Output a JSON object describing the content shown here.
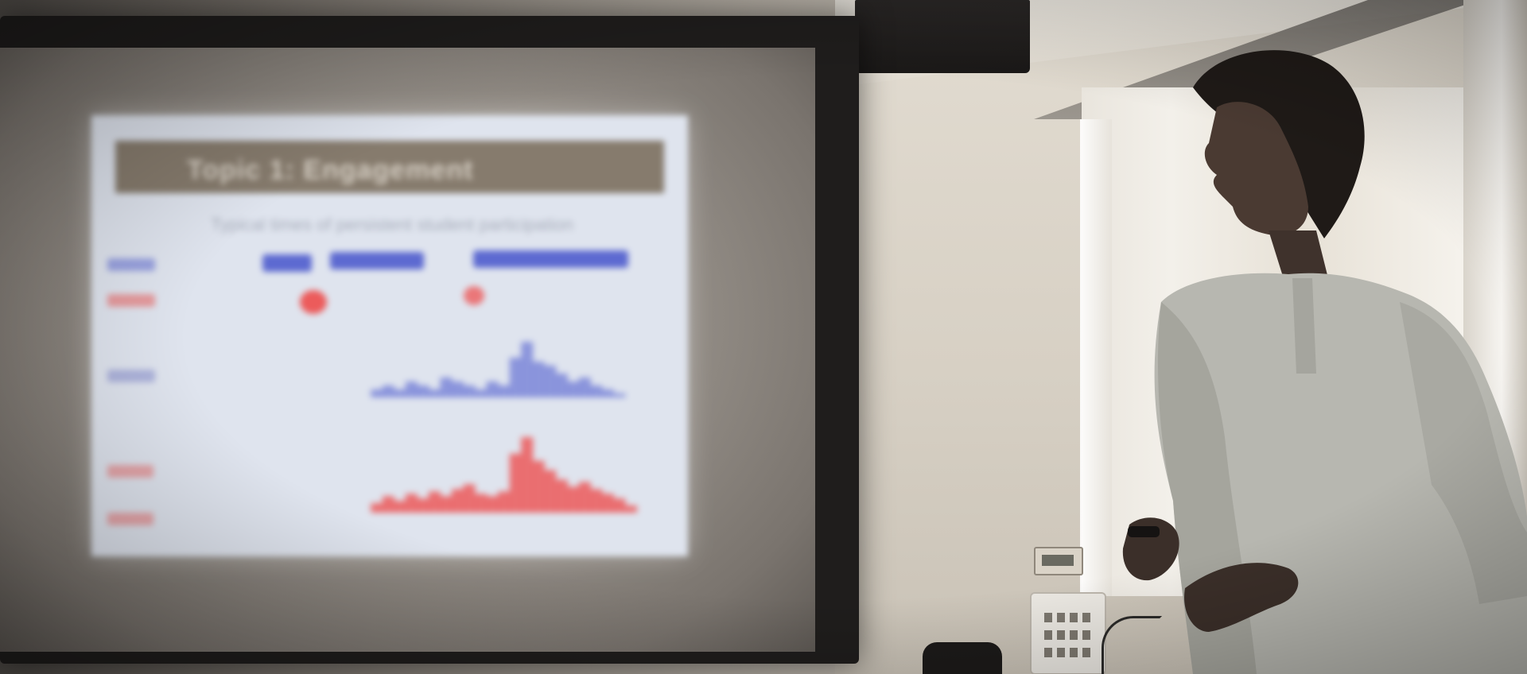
{
  "scene": {
    "description_tags": [
      "projection-screen",
      "presenter",
      "speaker",
      "window",
      "wall-plate",
      "control-box"
    ]
  },
  "slide": {
    "title": "Topic 1: Engagement",
    "subtitle": "Typical times of persistent student participation"
  },
  "colors": {
    "title_bar": "#867b6d",
    "legend_blue": "#5d6ad1",
    "series_red": "#ec5b5b",
    "series_blue": "#6f7bd6",
    "slide_background": "#dfe4ee"
  },
  "chart_data": {
    "type": "bar",
    "title": "",
    "xlabel": "",
    "ylabel": "",
    "series": [
      {
        "values": [
          0,
          0,
          0,
          0,
          0,
          0,
          0,
          0,
          2,
          3,
          2,
          4,
          3,
          2,
          5,
          4,
          3,
          2,
          4,
          3,
          10,
          14,
          9,
          8,
          6,
          4,
          5,
          3,
          2,
          1,
          0,
          0
        ]
      },
      {
        "values": [
          0,
          0,
          0,
          0,
          0,
          0,
          0,
          0,
          4,
          7,
          5,
          8,
          6,
          9,
          7,
          10,
          12,
          8,
          7,
          9,
          25,
          32,
          22,
          18,
          14,
          11,
          13,
          10,
          8,
          6,
          3,
          0
        ]
      }
    ]
  }
}
